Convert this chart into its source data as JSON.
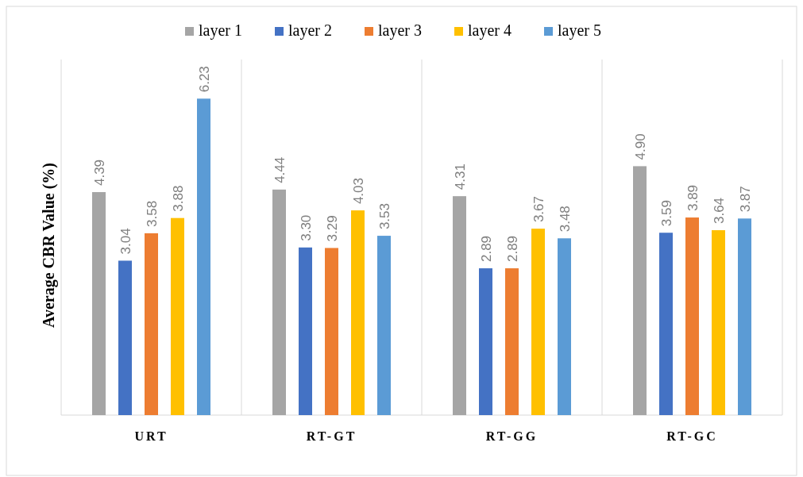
{
  "chart_data": {
    "type": "bar",
    "ylabel": "Average CBR Value (%)",
    "categories": [
      "URT",
      "RT-GT",
      "RT-GG",
      "RT-GC"
    ],
    "series": [
      {
        "name": "layer 1",
        "color": "#a5a5a5",
        "values": [
          4.39,
          4.44,
          4.31,
          4.9
        ],
        "value_labels": [
          "4.39",
          "4.44",
          "4.31",
          "4.90"
        ]
      },
      {
        "name": "layer 2",
        "color": "#4472c4",
        "values": [
          3.04,
          3.3,
          2.89,
          3.59
        ],
        "value_labels": [
          "3.04",
          "3.30",
          "2.89",
          "3.59"
        ]
      },
      {
        "name": "layer 3",
        "color": "#ed7d31",
        "values": [
          3.58,
          3.29,
          2.89,
          3.89
        ],
        "value_labels": [
          "3.58",
          "3.29",
          "2.89",
          "3.89"
        ]
      },
      {
        "name": "layer 4",
        "color": "#ffc000",
        "values": [
          3.88,
          4.03,
          3.67,
          3.64
        ],
        "value_labels": [
          "3.88",
          "4.03",
          "3.67",
          "3.64"
        ]
      },
      {
        "name": "layer 5",
        "color": "#5b9bd5",
        "values": [
          6.23,
          3.53,
          3.48,
          3.87
        ],
        "value_labels": [
          "6.23",
          "3.53",
          "3.48",
          "3.87"
        ]
      }
    ],
    "ylim": [
      0,
      7
    ],
    "tick_labels": "x",
    "grid": "x",
    "legend": "top"
  }
}
